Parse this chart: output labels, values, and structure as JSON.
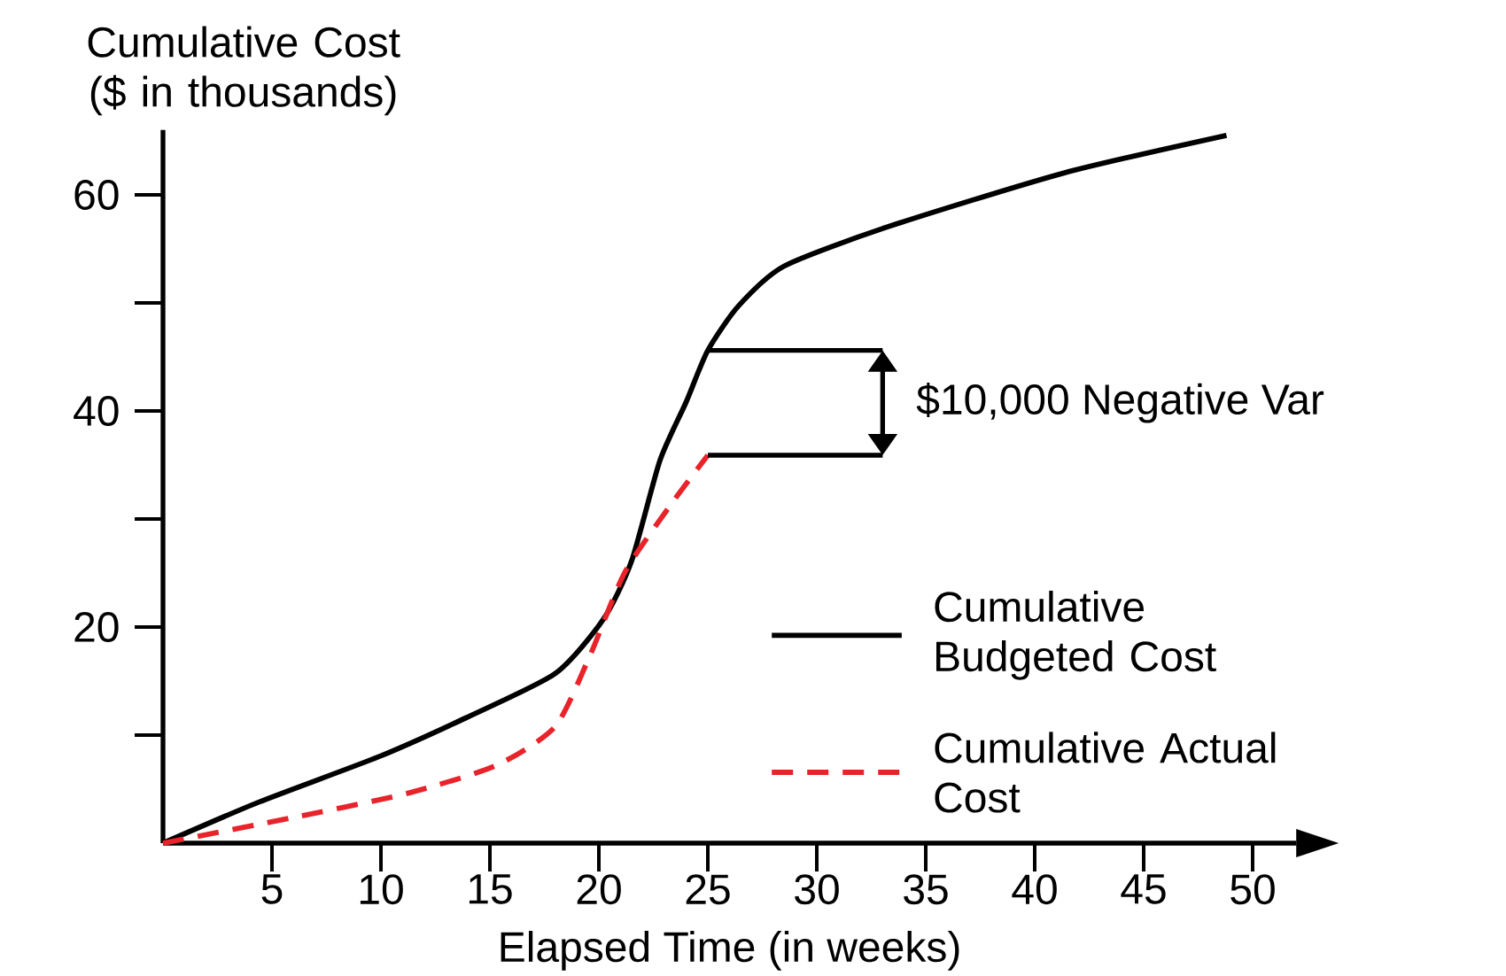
{
  "chart_data": {
    "type": "line",
    "xlabel": "Elapsed Time (in weeks)",
    "ylabel": "Cumulative Cost ($ in thousands)",
    "xlim": [
      0,
      52
    ],
    "ylim": [
      0,
      66
    ],
    "xticks": [
      5,
      10,
      15,
      20,
      25,
      30,
      35,
      40,
      45,
      50
    ],
    "yticks": [
      {
        "value": 10,
        "label": null
      },
      20,
      {
        "value": 30,
        "label": null
      },
      40,
      {
        "value": 50,
        "label": null
      },
      60
    ],
    "legend": "right",
    "marker": "none",
    "series": [
      {
        "name": "Cumulative Budgeted Cost",
        "color": "#000000",
        "line_style": "solid",
        "x": [
          0,
          4.4,
          9.9,
          13.9,
          18,
          20.2,
          21.5,
          22.8,
          24,
          25,
          26.4,
          28.5,
          33.2,
          41.3,
          48.8
        ],
        "values": [
          0,
          3.8,
          8,
          11.6,
          15.7,
          20.7,
          26.1,
          35.4,
          40.8,
          45.6,
          49.7,
          53.4,
          57,
          62,
          65.5
        ]
      },
      {
        "name": "Cumulative Actual Cost",
        "color": "#e8232a",
        "line_style": "dashed",
        "x": [
          0,
          5.8,
          11.2,
          15.3,
          18,
          19.6,
          21.2,
          23.4,
          25
        ],
        "values": [
          0,
          2.3,
          4.6,
          7.2,
          10.8,
          17.4,
          25.1,
          31.6,
          35.9
        ]
      }
    ],
    "annotations": [
      {
        "text": "$10,000 Negative Var",
        "x": 25,
        "y": 45.6
      }
    ]
  }
}
